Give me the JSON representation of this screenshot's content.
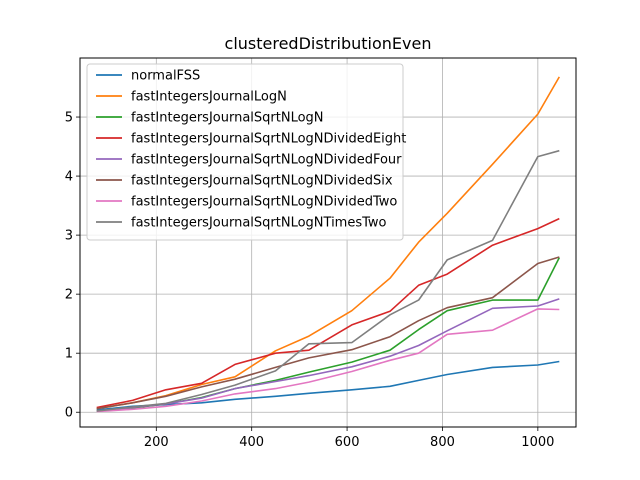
{
  "chart_data": {
    "type": "line",
    "title": "clusteredDistributionEven",
    "xlabel": "",
    "ylabel": "",
    "xlim": [
      40,
      1080
    ],
    "ylim": [
      -0.25,
      6.0
    ],
    "xticks": [
      200,
      400,
      600,
      800,
      1000
    ],
    "yticks": [
      0,
      1,
      2,
      3,
      4,
      5
    ],
    "grid": true,
    "legend_position": "upper-left",
    "x": [
      75,
      150,
      220,
      295,
      365,
      450,
      520,
      610,
      690,
      750,
      810,
      905,
      1000,
      1045
    ],
    "series": [
      {
        "name": "normalFSS",
        "color": "#1f77b4",
        "values": [
          0.04,
          0.1,
          0.13,
          0.16,
          0.22,
          0.27,
          0.32,
          0.38,
          0.44,
          0.54,
          0.64,
          0.76,
          0.8,
          0.86
        ]
      },
      {
        "name": "fastIntegersJournalLogN",
        "color": "#ff7f0e",
        "values": [
          0.06,
          0.16,
          0.28,
          0.47,
          0.6,
          1.04,
          1.29,
          1.72,
          2.27,
          2.88,
          3.37,
          4.2,
          5.05,
          5.68
        ]
      },
      {
        "name": "fastIntegersJournalSqrtNLogN",
        "color": "#2ca02c",
        "values": [
          0.02,
          0.07,
          0.14,
          0.25,
          0.4,
          0.54,
          0.68,
          0.85,
          1.05,
          1.4,
          1.72,
          1.9,
          1.9,
          2.62
        ]
      },
      {
        "name": "fastIntegersJournalSqrtNLogNDividedEight",
        "color": "#d62728",
        "values": [
          0.08,
          0.2,
          0.38,
          0.49,
          0.81,
          1.0,
          1.05,
          1.48,
          1.71,
          2.15,
          2.34,
          2.83,
          3.11,
          3.28
        ]
      },
      {
        "name": "fastIntegersJournalSqrtNLogNDividedFour",
        "color": "#9467bd",
        "values": [
          0.02,
          0.08,
          0.14,
          0.24,
          0.4,
          0.52,
          0.62,
          0.77,
          0.95,
          1.13,
          1.38,
          1.76,
          1.8,
          1.92
        ]
      },
      {
        "name": "fastIntegersJournalSqrtNLogNDividedSix",
        "color": "#8c564b",
        "values": [
          0.06,
          0.16,
          0.27,
          0.43,
          0.56,
          0.76,
          0.92,
          1.06,
          1.28,
          1.55,
          1.77,
          1.94,
          2.52,
          2.63
        ]
      },
      {
        "name": "fastIntegersJournalSqrtNLogNDividedTwo",
        "color": "#e377c2",
        "values": [
          0.01,
          0.05,
          0.1,
          0.19,
          0.31,
          0.4,
          0.51,
          0.69,
          0.88,
          1.0,
          1.32,
          1.39,
          1.75,
          1.74
        ]
      },
      {
        "name": "fastIntegersJournalSqrtNLogNTimesTwo",
        "color": "#7f7f7f",
        "values": [
          0.02,
          0.09,
          0.15,
          0.3,
          0.46,
          0.7,
          1.16,
          1.18,
          1.65,
          1.9,
          2.58,
          2.91,
          4.33,
          4.43
        ]
      }
    ]
  }
}
